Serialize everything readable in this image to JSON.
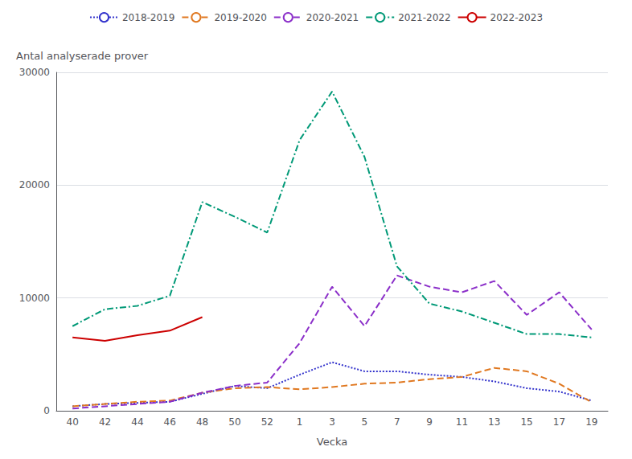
{
  "chart_data": {
    "type": "line",
    "xlabel": "Vecka",
    "ylabel": "Antal analyserade prover",
    "categories": [
      "40",
      "42",
      "44",
      "46",
      "48",
      "50",
      "52",
      "1",
      "3",
      "5",
      "7",
      "9",
      "11",
      "13",
      "15",
      "17",
      "19"
    ],
    "series": [
      {
        "name": "2018-2019",
        "color": "#3333cc",
        "line_style": "dotted",
        "values": [
          400,
          600,
          700,
          800,
          1500,
          2200,
          2000,
          3200,
          4300,
          3500,
          3500,
          3200,
          3000,
          2600,
          2000,
          1700,
          900
        ]
      },
      {
        "name": "2019-2020",
        "color": "#e07820",
        "line_style": "dashed",
        "values": [
          400,
          600,
          800,
          900,
          1600,
          2000,
          2100,
          1900,
          2100,
          2400,
          2500,
          2800,
          3000,
          3800,
          3500,
          2400,
          750
        ]
      },
      {
        "name": "2020-2021",
        "color": "#8b2fc9",
        "line_style": "dashed",
        "values": [
          200,
          400,
          600,
          800,
          1600,
          2200,
          2500,
          6000,
          11000,
          7500,
          12000,
          11000,
          10500,
          11500,
          8500,
          10500,
          7200
        ]
      },
      {
        "name": "2021-2022",
        "color": "#009977",
        "line_style": "dashdot",
        "values": [
          7500,
          9000,
          9300,
          10200,
          18500,
          17200,
          15800,
          24000,
          28300,
          22500,
          12800,
          9500,
          8800,
          7800,
          6800,
          6800,
          6500
        ]
      },
      {
        "name": "2022-2023",
        "color": "#cc0000",
        "line_style": "solid",
        "values": [
          6500,
          6200,
          6700,
          7100,
          8300,
          null,
          null,
          null,
          null,
          null,
          null,
          null,
          null,
          null,
          null,
          null,
          null
        ]
      }
    ],
    "ylim": [
      0,
      30000
    ],
    "yticks": [
      0,
      10000,
      20000,
      30000
    ],
    "grid": true,
    "legend": "top"
  }
}
